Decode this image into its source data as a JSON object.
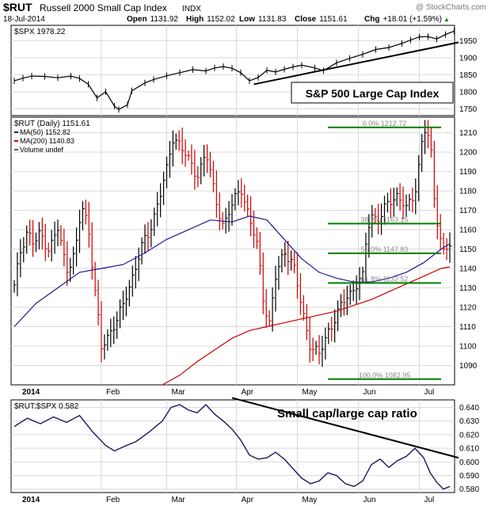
{
  "header": {
    "symbol": "$RUT",
    "name": "Russell 2000 Small Cap Index",
    "exchange": "INDX",
    "watermark": "@ StockCharts.com",
    "date": "18-Jul-2014",
    "quote": [
      {
        "label": "Open",
        "value": "1131.92"
      },
      {
        "label": "High",
        "value": "1152.02"
      },
      {
        "label": "Low",
        "value": "1131.83"
      },
      {
        "label": "Close",
        "value": "1151.61"
      },
      {
        "label": "Chg",
        "value": "+18.01 (+1.59%)"
      }
    ],
    "chg_arrow": "▲"
  },
  "colors": {
    "price_up": "#000000",
    "price_down": "#cc0000",
    "ma50": "#1a1a8c",
    "ma200": "#cc0000",
    "fib": "#008000",
    "grid": "#d9d9d9",
    "trendline": "#000000"
  },
  "chart_data": [
    {
      "panel": "spx",
      "type": "line",
      "legend": "$SPX 1978.22",
      "annotation": "S&P 500 Large Cap Index",
      "ylim": [
        1730,
        1995
      ],
      "yticks": [
        1750,
        1800,
        1850,
        1900,
        1950
      ],
      "points": [
        [
          0,
          1832
        ],
        [
          0.02,
          1840
        ],
        [
          0.04,
          1846
        ],
        [
          0.07,
          1845
        ],
        [
          0.1,
          1841
        ],
        [
          0.13,
          1846
        ],
        [
          0.15,
          1839
        ],
        [
          0.17,
          1822
        ],
        [
          0.19,
          1782
        ],
        [
          0.21,
          1800
        ],
        [
          0.23,
          1758
        ],
        [
          0.24,
          1748
        ],
        [
          0.26,
          1762
        ],
        [
          0.27,
          1803
        ],
        [
          0.3,
          1826
        ],
        [
          0.32,
          1836
        ],
        [
          0.35,
          1847
        ],
        [
          0.38,
          1856
        ],
        [
          0.41,
          1865
        ],
        [
          0.44,
          1861
        ],
        [
          0.46,
          1870
        ],
        [
          0.48,
          1874
        ],
        [
          0.5,
          1869
        ],
        [
          0.52,
          1856
        ],
        [
          0.54,
          1832
        ],
        [
          0.56,
          1842
        ],
        [
          0.58,
          1863
        ],
        [
          0.6,
          1858
        ],
        [
          0.62,
          1866
        ],
        [
          0.64,
          1873
        ],
        [
          0.66,
          1878
        ],
        [
          0.69,
          1870
        ],
        [
          0.71,
          1862
        ],
        [
          0.74,
          1885
        ],
        [
          0.77,
          1898
        ],
        [
          0.8,
          1910
        ],
        [
          0.83,
          1924
        ],
        [
          0.86,
          1930
        ],
        [
          0.89,
          1942
        ],
        [
          0.91,
          1952
        ],
        [
          0.93,
          1961
        ],
        [
          0.95,
          1962
        ],
        [
          0.97,
          1955
        ],
        [
          0.99,
          1968
        ],
        [
          1.01,
          1978
        ]
      ],
      "trendline": {
        "x": [
          0.55,
          1.02
        ],
        "y": [
          1822,
          1945
        ]
      }
    },
    {
      "panel": "rut",
      "type": "bar",
      "legend": [
        "$RUT (Daily) 1151.61",
        "MA(50) 1152.82",
        "MA(200) 1140.83",
        "Volume undef"
      ],
      "ylim": [
        1080,
        1218
      ],
      "yticks": [
        1090,
        1100,
        1110,
        1120,
        1130,
        1140,
        1150,
        1160,
        1170,
        1180,
        1190,
        1200,
        1210
      ],
      "fibonacci": [
        {
          "label": "0.0% 1212.72",
          "value": 1212.72
        },
        {
          "label": "38.2% 1163.15",
          "value": 1163.15
        },
        {
          "label": "50.0% 1147.83",
          "value": 1147.83
        },
        {
          "label": "61.8% 1132.52",
          "value": 1132.52
        },
        {
          "label": "100.0% 1082.95",
          "value": 1082.95
        }
      ],
      "fib_x_range": [
        0.72,
        0.98
      ],
      "close_path": [
        [
          0,
          1130
        ],
        [
          0.015,
          1150
        ],
        [
          0.03,
          1160
        ],
        [
          0.045,
          1152
        ],
        [
          0.06,
          1158
        ],
        [
          0.08,
          1150
        ],
        [
          0.1,
          1160
        ],
        [
          0.12,
          1140
        ],
        [
          0.14,
          1148
        ],
        [
          0.155,
          1172
        ],
        [
          0.17,
          1162
        ],
        [
          0.185,
          1130
        ],
        [
          0.2,
          1098
        ],
        [
          0.215,
          1105
        ],
        [
          0.23,
          1112
        ],
        [
          0.25,
          1120
        ],
        [
          0.27,
          1135
        ],
        [
          0.29,
          1150
        ],
        [
          0.31,
          1158
        ],
        [
          0.33,
          1175
        ],
        [
          0.35,
          1190
        ],
        [
          0.365,
          1208
        ],
        [
          0.38,
          1205
        ],
        [
          0.4,
          1195
        ],
        [
          0.42,
          1188
        ],
        [
          0.44,
          1200
        ],
        [
          0.46,
          1178
        ],
        [
          0.48,
          1162
        ],
        [
          0.5,
          1172
        ],
        [
          0.52,
          1183
        ],
        [
          0.54,
          1165
        ],
        [
          0.56,
          1150
        ],
        [
          0.57,
          1128
        ],
        [
          0.585,
          1110
        ],
        [
          0.6,
          1135
        ],
        [
          0.62,
          1150
        ],
        [
          0.64,
          1142
        ],
        [
          0.66,
          1120
        ],
        [
          0.68,
          1100
        ],
        [
          0.7,
          1095
        ],
        [
          0.72,
          1108
        ],
        [
          0.74,
          1115
        ],
        [
          0.76,
          1125
        ],
        [
          0.78,
          1130
        ],
        [
          0.8,
          1135
        ],
        [
          0.81,
          1160
        ],
        [
          0.82,
          1168
        ],
        [
          0.84,
          1165
        ],
        [
          0.86,
          1175
        ],
        [
          0.88,
          1178
        ],
        [
          0.9,
          1170
        ],
        [
          0.92,
          1180
        ],
        [
          0.93,
          1195
        ],
        [
          0.94,
          1212
        ],
        [
          0.955,
          1205
        ],
        [
          0.965,
          1175
        ],
        [
          0.975,
          1160
        ],
        [
          0.985,
          1148
        ],
        [
          1.0,
          1151.6
        ]
      ],
      "ma50": [
        [
          0,
          1110
        ],
        [
          0.05,
          1122
        ],
        [
          0.1,
          1130
        ],
        [
          0.15,
          1138
        ],
        [
          0.2,
          1140
        ],
        [
          0.25,
          1142
        ],
        [
          0.3,
          1148
        ],
        [
          0.35,
          1155
        ],
        [
          0.4,
          1160
        ],
        [
          0.45,
          1165
        ],
        [
          0.5,
          1164
        ],
        [
          0.54,
          1167
        ],
        [
          0.58,
          1165
        ],
        [
          0.62,
          1155
        ],
        [
          0.66,
          1145
        ],
        [
          0.7,
          1138
        ],
        [
          0.74,
          1135
        ],
        [
          0.78,
          1133
        ],
        [
          0.82,
          1133
        ],
        [
          0.86,
          1135
        ],
        [
          0.9,
          1138
        ],
        [
          0.94,
          1143
        ],
        [
          0.98,
          1150
        ],
        [
          1.0,
          1152.8
        ]
      ],
      "ma200": [
        [
          0.34,
          1080
        ],
        [
          0.38,
          1085
        ],
        [
          0.42,
          1092
        ],
        [
          0.46,
          1098
        ],
        [
          0.5,
          1104
        ],
        [
          0.54,
          1108
        ],
        [
          0.58,
          1110
        ],
        [
          0.62,
          1112
        ],
        [
          0.66,
          1114
        ],
        [
          0.7,
          1116
        ],
        [
          0.74,
          1118
        ],
        [
          0.78,
          1121
        ],
        [
          0.82,
          1124
        ],
        [
          0.86,
          1128
        ],
        [
          0.9,
          1132
        ],
        [
          0.94,
          1136
        ],
        [
          0.98,
          1140
        ],
        [
          1.0,
          1140.8
        ]
      ]
    },
    {
      "panel": "ratio",
      "type": "line",
      "legend": "$RUT:$SPX 0.582",
      "annotation": "Small cap/large cap ratio",
      "ylim": [
        0.5775,
        0.6455
      ],
      "yticks": [
        0.58,
        0.59,
        0.6,
        0.61,
        0.62,
        0.63,
        0.64
      ],
      "points": [
        [
          0,
          0.626
        ],
        [
          0.03,
          0.632
        ],
        [
          0.06,
          0.628
        ],
        [
          0.09,
          0.633
        ],
        [
          0.12,
          0.629
        ],
        [
          0.15,
          0.634
        ],
        [
          0.18,
          0.622
        ],
        [
          0.21,
          0.612
        ],
        [
          0.23,
          0.608
        ],
        [
          0.25,
          0.611
        ],
        [
          0.28,
          0.615
        ],
        [
          0.31,
          0.622
        ],
        [
          0.34,
          0.63
        ],
        [
          0.36,
          0.64
        ],
        [
          0.38,
          0.642
        ],
        [
          0.4,
          0.638
        ],
        [
          0.42,
          0.636
        ],
        [
          0.44,
          0.642
        ],
        [
          0.46,
          0.635
        ],
        [
          0.48,
          0.63
        ],
        [
          0.5,
          0.624
        ],
        [
          0.52,
          0.616
        ],
        [
          0.54,
          0.605
        ],
        [
          0.56,
          0.602
        ],
        [
          0.58,
          0.603
        ],
        [
          0.6,
          0.607
        ],
        [
          0.62,
          0.602
        ],
        [
          0.64,
          0.595
        ],
        [
          0.66,
          0.588
        ],
        [
          0.68,
          0.584
        ],
        [
          0.7,
          0.586
        ],
        [
          0.72,
          0.592
        ],
        [
          0.74,
          0.59
        ],
        [
          0.76,
          0.584
        ],
        [
          0.78,
          0.582
        ],
        [
          0.8,
          0.586
        ],
        [
          0.82,
          0.598
        ],
        [
          0.84,
          0.602
        ],
        [
          0.86,
          0.596
        ],
        [
          0.88,
          0.601
        ],
        [
          0.9,
          0.604
        ],
        [
          0.92,
          0.61
        ],
        [
          0.94,
          0.603
        ],
        [
          0.955,
          0.592
        ],
        [
          0.97,
          0.585
        ],
        [
          0.985,
          0.58
        ],
        [
          1.0,
          0.582
        ]
      ],
      "trendline": {
        "x": [
          0.5,
          1.02
        ],
        "y": [
          0.647,
          0.603
        ]
      }
    }
  ],
  "x_axis": {
    "labels": [
      {
        "label": "2014",
        "pos": 0.0,
        "bold": true
      },
      {
        "label": "Feb",
        "pos": 0.2
      },
      {
        "label": "Mar",
        "pos": 0.35
      },
      {
        "label": "Apr",
        "pos": 0.51
      },
      {
        "label": "May",
        "pos": 0.65
      },
      {
        "label": "Jun",
        "pos": 0.79
      },
      {
        "label": "Jul",
        "pos": 0.93
      }
    ]
  }
}
